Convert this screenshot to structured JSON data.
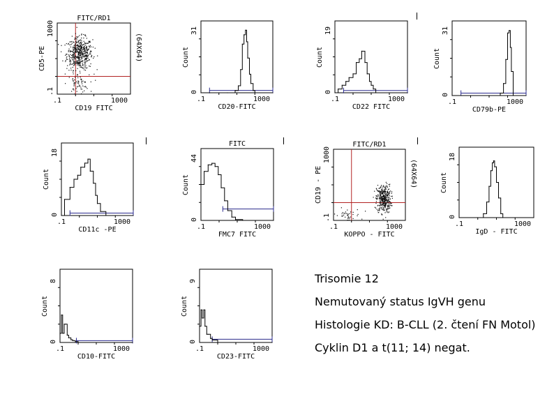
{
  "chart_data": [
    {
      "id": "p1",
      "type": "scatter",
      "title": "FITC/RD1",
      "xlabel": "CD19 FITC",
      "ylabel": "CD5-PE",
      "side_label": "(64X64)",
      "xticks": [
        ".1",
        "1000"
      ],
      "yticks": [
        ".1",
        "1000"
      ],
      "xlim": [
        0.1,
        1000
      ],
      "ylim": [
        0.1,
        1000
      ],
      "xscale": "log",
      "yscale": "log",
      "quadrant": {
        "x": 1.0,
        "y": 1.0
      },
      "clusters": [
        {
          "cx": 1.6,
          "cy": 20,
          "sx": 0.35,
          "sy": 0.45,
          "n": 520
        },
        {
          "cx": 1.3,
          "cy": 0.4,
          "sx": 0.3,
          "sy": 0.25,
          "n": 60
        }
      ]
    },
    {
      "id": "p2",
      "type": "line",
      "title": "",
      "xlabel": "CD20-FITC",
      "ylabel": "Count",
      "xticks": [
        ".1",
        "1000"
      ],
      "yticks": [
        "0",
        "31"
      ],
      "xlim": [
        0.1,
        1000
      ],
      "ylim": [
        0,
        31
      ],
      "xscale": "log",
      "marker_line": {
        "from": 0.3,
        "to": 1000,
        "y": 1
      },
      "x": [
        0.1,
        0.3,
        3,
        8,
        12,
        16,
        20,
        25,
        30,
        35,
        40,
        50,
        60,
        80,
        100,
        1000
      ],
      "values": [
        0,
        0,
        0,
        1,
        3,
        10,
        21,
        25,
        27,
        22,
        15,
        8,
        4,
        1,
        0,
        0
      ]
    },
    {
      "id": "p3",
      "type": "line",
      "title": "",
      "xlabel": "CD22 FITC",
      "ylabel": "Count",
      "xticks": [
        ".1",
        "1000"
      ],
      "yticks": [
        "0",
        "19"
      ],
      "xlim": [
        0.1,
        1000
      ],
      "ylim": [
        0,
        19
      ],
      "xscale": "log",
      "marker_line": {
        "from": 0.3,
        "to": 1000,
        "y": 0.6
      },
      "x": [
        0.1,
        0.15,
        0.25,
        0.4,
        0.6,
        1,
        1.5,
        2.2,
        3,
        4.5,
        6,
        8,
        10,
        13,
        18,
        1000
      ],
      "values": [
        0,
        1,
        2,
        3,
        4,
        5,
        8,
        9,
        11,
        8,
        5,
        3,
        2,
        1,
        0,
        0
      ]
    },
    {
      "id": "p4",
      "type": "line",
      "title": "",
      "xlabel": "CD79b-PE",
      "ylabel": "Count",
      "xticks": [
        ".1",
        "1000"
      ],
      "yticks": [
        "0",
        "31"
      ],
      "xlim": [
        0.1,
        1000
      ],
      "ylim": [
        0,
        31
      ],
      "xscale": "log",
      "marker_line": {
        "from": 0.3,
        "to": 1000,
        "y": 1
      },
      "x": [
        0.1,
        10,
        40,
        60,
        80,
        100,
        120,
        140,
        160,
        200,
        1000
      ],
      "values": [
        0,
        0,
        1,
        5,
        15,
        26,
        27,
        20,
        10,
        0,
        0
      ]
    },
    {
      "id": "p5",
      "type": "line",
      "title": "",
      "xlabel": "CD11c -PE",
      "ylabel": "Count",
      "xticks": [
        ".1",
        "1000"
      ],
      "yticks": [
        "0",
        "18"
      ],
      "xlim": [
        0.1,
        1000
      ],
      "ylim": [
        0,
        18
      ],
      "xscale": "log",
      "marker_line": {
        "from": 0.3,
        "to": 1000,
        "y": 0.6
      },
      "x": [
        0.1,
        0.15,
        0.3,
        0.5,
        0.8,
        1.2,
        2,
        3,
        4,
        6,
        8,
        10,
        15,
        30,
        1000
      ],
      "values": [
        0,
        4,
        7,
        9,
        10,
        12,
        13,
        14,
        11,
        8,
        5,
        3,
        1,
        0,
        0
      ]
    },
    {
      "id": "p6",
      "type": "line",
      "title": "FITC",
      "xlabel": "FMC7 FITC",
      "ylabel": "Count",
      "xticks": [
        ".1",
        "1000"
      ],
      "yticks": [
        "0",
        "44"
      ],
      "xlim": [
        0.1,
        1000
      ],
      "ylim": [
        0,
        44
      ],
      "xscale": "log",
      "marker_line": {
        "from": 1.6,
        "to": 1000,
        "y": 7
      },
      "x": [
        0.1,
        0.15,
        0.25,
        0.4,
        0.6,
        0.9,
        1.3,
        2,
        3,
        5,
        8,
        20,
        1000
      ],
      "values": [
        22,
        30,
        34,
        35,
        33,
        28,
        20,
        12,
        6,
        2,
        0.5,
        0,
        0
      ]
    },
    {
      "id": "p7",
      "type": "scatter",
      "title": "FITC/RD1",
      "xlabel": "KOPPO - FITC",
      "ylabel": "CD19 - PE",
      "side_label": "(64X64)",
      "xticks": [
        ".1",
        "1000"
      ],
      "yticks": [
        ".1",
        "1000"
      ],
      "xlim": [
        0.1,
        1000
      ],
      "ylim": [
        0.1,
        1000
      ],
      "xscale": "log",
      "yscale": "log",
      "quadrant": {
        "x": 1.0,
        "y": 1.0
      },
      "clusters": [
        {
          "cx": 60,
          "cy": 1.7,
          "sx": 0.2,
          "sy": 0.4,
          "n": 380
        },
        {
          "cx": 0.5,
          "cy": 0.2,
          "sx": 0.4,
          "sy": 0.2,
          "n": 40
        }
      ]
    },
    {
      "id": "p8",
      "type": "line",
      "title": "",
      "xlabel": "IgD - FITC",
      "ylabel": "Count",
      "xticks": [
        ".1",
        "1000"
      ],
      "yticks": [
        "0",
        "18"
      ],
      "xlim": [
        0.1,
        1000
      ],
      "ylim": [
        0,
        18
      ],
      "xscale": "log",
      "marker_line": null,
      "x": [
        0.1,
        1,
        2,
        3,
        4,
        5,
        6,
        7,
        8,
        10,
        13,
        17,
        22,
        1000
      ],
      "values": [
        0,
        0,
        1,
        4,
        8,
        12,
        14,
        14.5,
        13,
        9,
        5,
        1,
        0,
        0
      ]
    },
    {
      "id": "p9",
      "type": "line",
      "title": "",
      "xlabel": "CD10-FITC",
      "ylabel": "Count",
      "xticks": [
        ".1",
        "1000"
      ],
      "yticks": [
        "0",
        "8"
      ],
      "xlim": [
        0.1,
        1000
      ],
      "ylim": [
        0,
        8
      ],
      "xscale": "log",
      "marker_line": {
        "from": 0.8,
        "to": 1000,
        "y": 0.2
      },
      "x": [
        0.1,
        0.12,
        0.14,
        0.17,
        0.2,
        0.25,
        0.3,
        0.4,
        0.5,
        0.7,
        1,
        1000
      ],
      "values": [
        1,
        3,
        1,
        2,
        2,
        0.8,
        0.5,
        0.3,
        0.2,
        0.1,
        0,
        0
      ]
    },
    {
      "id": "p10",
      "type": "line",
      "title": "",
      "xlabel": "CD23-FITC",
      "ylabel": "Count",
      "xticks": [
        ".1",
        "1000"
      ],
      "yticks": [
        "0",
        "9"
      ],
      "xlim": [
        0.1,
        1000
      ],
      "ylim": [
        0,
        9
      ],
      "xscale": "log",
      "marker_line": {
        "from": 0.5,
        "to": 1000,
        "y": 0.4
      },
      "x": [
        0.1,
        0.12,
        0.14,
        0.17,
        0.2,
        0.25,
        0.3,
        0.4,
        0.5,
        1,
        1000
      ],
      "values": [
        2,
        4,
        3,
        4,
        2,
        1,
        1,
        0.5,
        0.3,
        0,
        0
      ]
    }
  ],
  "notes": [
    "Trisomie 12",
    "Nemutovaný status IgVH genu",
    "Histologie KD: B-CLL (2. čtení FN Motol)",
    "Cyklin D1 a t(11; 14) negat."
  ],
  "colors": {
    "axis": "#000000",
    "line": "#000000",
    "marker": "#2a2a8c",
    "quadrant": "#b22222",
    "dots": "#111111"
  }
}
